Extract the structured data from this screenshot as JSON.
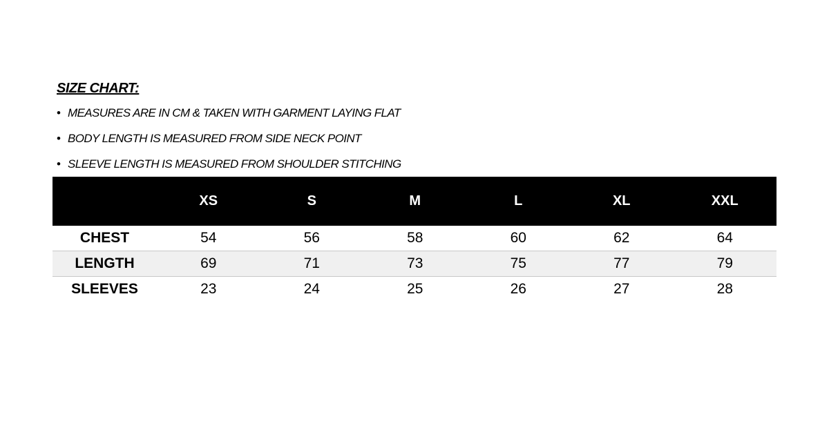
{
  "title": "SIZE CHART:",
  "notes": [
    "MEASURES ARE IN CM & TAKEN WITH GARMENT LAYING FLAT",
    "BODY LENGTH IS MEASURED FROM SIDE NECK POINT",
    "SLEEVE LENGTH IS MEASURED FROM SHOULDER STITCHING"
  ],
  "bullet": "•",
  "table": {
    "header_color": "#000000",
    "columns": [
      "",
      "XS",
      "S",
      "M",
      "L",
      "XL",
      "XXL"
    ],
    "rows": [
      [
        "CHEST",
        "54",
        "56",
        "58",
        "60",
        "62",
        "64"
      ],
      [
        "LENGTH",
        "69",
        "71",
        "73",
        "75",
        "77",
        "79"
      ],
      [
        "SLEEVES",
        "23",
        "24",
        "25",
        "26",
        "27",
        "28"
      ]
    ]
  }
}
